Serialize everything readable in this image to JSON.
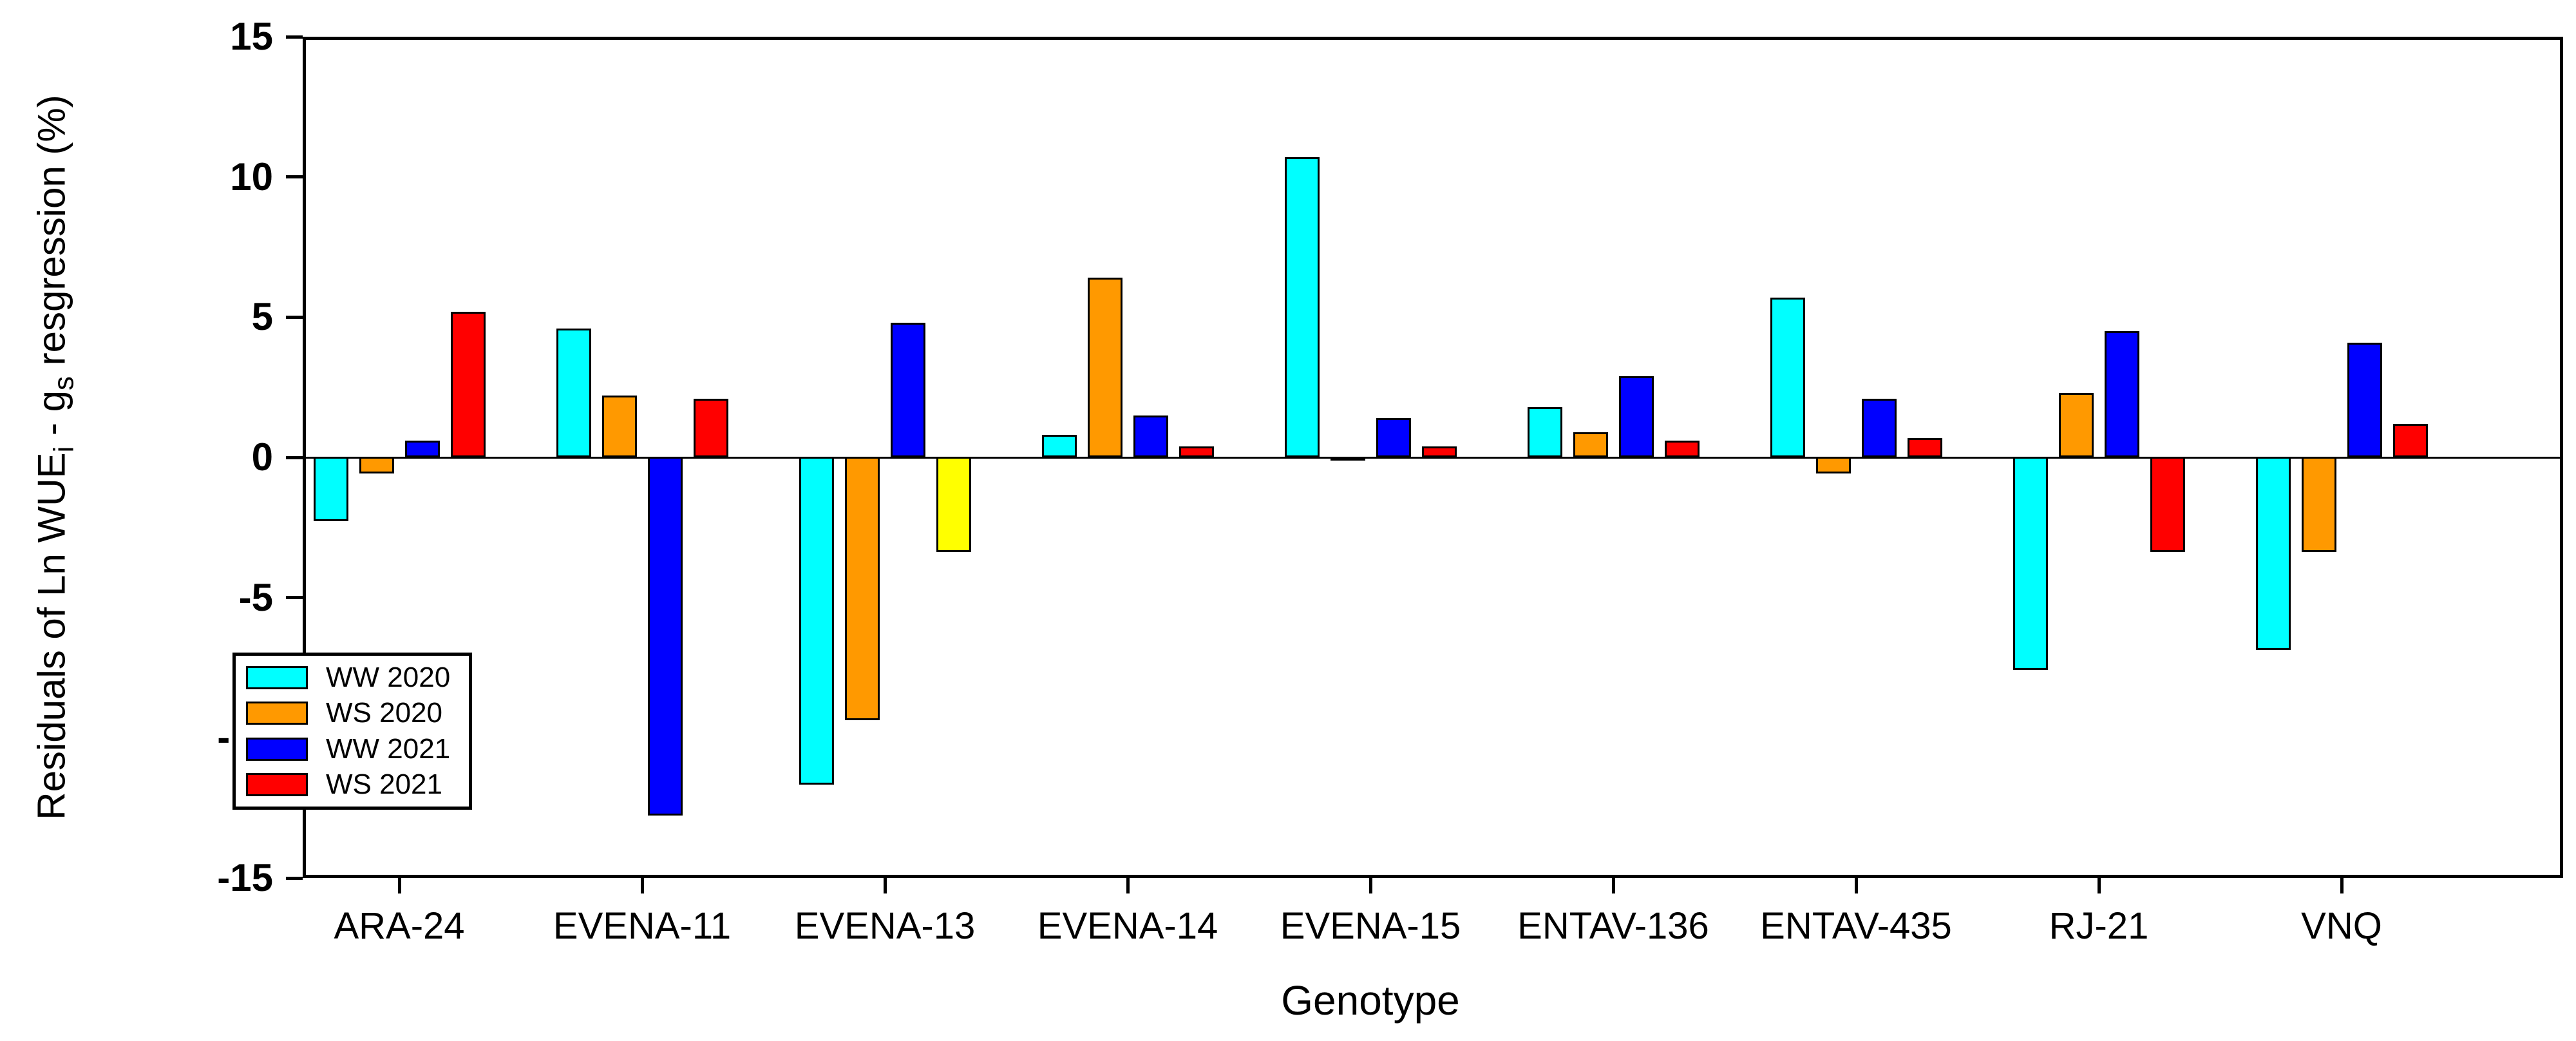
{
  "chart_data": {
    "type": "bar",
    "title": "",
    "xlabel": "Genotype",
    "ylabel": {
      "p1": "Residuals of Ln WUE",
      "sub1": "i",
      "p2": " - g",
      "sub2": "s",
      "p3": " resgression (%)"
    },
    "categories": [
      "ARA-24",
      "EVENA-11",
      "EVENA-13",
      "EVENA-14",
      "EVENA-15",
      "ENTAV-136",
      "ENTAV-435",
      "RJ-21",
      "VNQ"
    ],
    "series": [
      {
        "name": "WW 2020",
        "color": "#00FFFF",
        "values": [
          -2.3,
          4.6,
          -11.7,
          0.8,
          10.7,
          1.8,
          5.7,
          -7.6,
          -6.9
        ]
      },
      {
        "name": "WS 2020",
        "color": "#FF9900",
        "values": [
          -0.6,
          2.2,
          -9.4,
          6.4,
          -0.1,
          0.9,
          -0.6,
          2.3,
          -3.4
        ]
      },
      {
        "name": "WW 2021",
        "color": "#0000FF",
        "values": [
          0.6,
          -12.8,
          4.8,
          1.5,
          1.4,
          2.9,
          2.1,
          4.5,
          4.1
        ]
      },
      {
        "name": "WS 2021",
        "color": "#FF0000",
        "values": [
          5.2,
          2.1,
          -3.4,
          0.4,
          0.4,
          0.6,
          0.7,
          -3.4,
          1.2
        ]
      }
    ],
    "bar_color_overrides": [
      {
        "category": "EVENA-13",
        "series": "WS 2021",
        "color": "#FFFF00"
      }
    ],
    "ylim": [
      -15,
      15
    ],
    "yticks": [
      15,
      10,
      5,
      0,
      -5,
      -10,
      -15
    ],
    "grid": false,
    "legend_position": "inside-lower-left",
    "legend": [
      "WW 2020",
      "WS 2020",
      "WW 2021",
      "WS 2021"
    ]
  }
}
